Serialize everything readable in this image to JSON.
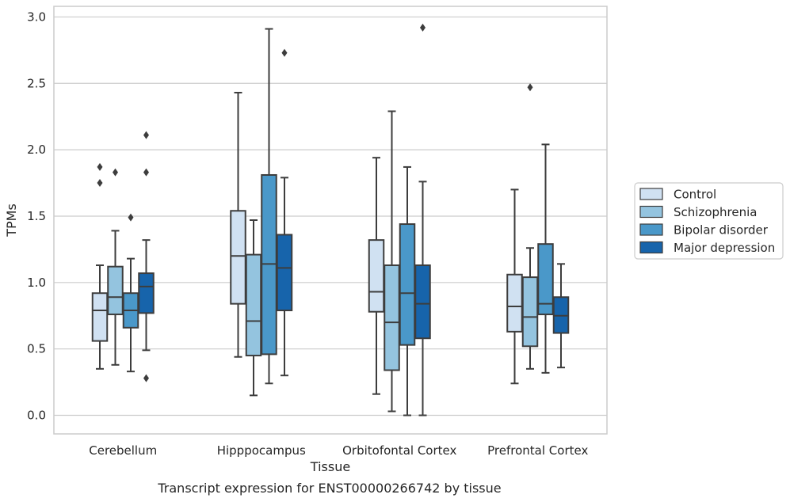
{
  "caption": "Transcript expression for ENST00000266742 by tissue",
  "chart_data": {
    "type": "box",
    "xlabel": "Tissue",
    "ylabel": "TPMs",
    "ylim": [
      -0.14,
      3.08
    ],
    "yticks": [
      0.0,
      0.5,
      1.0,
      1.5,
      2.0,
      2.5,
      3.0
    ],
    "ytick_labels": [
      "0.0",
      "0.5",
      "1.0",
      "1.5",
      "2.0",
      "2.5",
      "3.0"
    ],
    "grid": "horizontal",
    "legend_position": "right",
    "categories": [
      "Cerebellum",
      "Hipppocampus",
      "Orbitofontal Cortex",
      "Prefrontal Cortex"
    ],
    "series": [
      {
        "name": "Control",
        "color": "#d0e1f2",
        "boxes": [
          {
            "whislo": 0.35,
            "q1": 0.56,
            "med": 0.79,
            "q3": 0.92,
            "whishi": 1.13,
            "fliers": [
              1.75,
              1.87
            ]
          },
          {
            "whislo": 0.44,
            "q1": 0.84,
            "med": 1.2,
            "q3": 1.54,
            "whishi": 2.43,
            "fliers": []
          },
          {
            "whislo": 0.16,
            "q1": 0.78,
            "med": 0.93,
            "q3": 1.32,
            "whishi": 1.94,
            "fliers": []
          },
          {
            "whislo": 0.24,
            "q1": 0.63,
            "med": 0.82,
            "q3": 1.06,
            "whishi": 1.7,
            "fliers": []
          }
        ]
      },
      {
        "name": "Schizophrenia",
        "color": "#94c4df",
        "boxes": [
          {
            "whislo": 0.38,
            "q1": 0.76,
            "med": 0.89,
            "q3": 1.12,
            "whishi": 1.39,
            "fliers": [
              1.83
            ]
          },
          {
            "whislo": 0.15,
            "q1": 0.45,
            "med": 0.71,
            "q3": 1.21,
            "whishi": 1.47,
            "fliers": []
          },
          {
            "whislo": 0.03,
            "q1": 0.34,
            "med": 0.7,
            "q3": 1.13,
            "whishi": 2.29,
            "fliers": []
          },
          {
            "whislo": 0.35,
            "q1": 0.52,
            "med": 0.74,
            "q3": 1.04,
            "whishi": 1.26,
            "fliers": [
              2.47
            ]
          }
        ]
      },
      {
        "name": "Bipolar disorder",
        "color": "#4a98c9",
        "boxes": [
          {
            "whislo": 0.33,
            "q1": 0.66,
            "med": 0.79,
            "q3": 0.92,
            "whishi": 1.18,
            "fliers": [
              1.49
            ]
          },
          {
            "whislo": 0.24,
            "q1": 0.46,
            "med": 1.14,
            "q3": 1.81,
            "whishi": 2.91,
            "fliers": []
          },
          {
            "whislo": 0.0,
            "q1": 0.53,
            "med": 0.92,
            "q3": 1.44,
            "whishi": 1.87,
            "fliers": []
          },
          {
            "whislo": 0.32,
            "q1": 0.76,
            "med": 0.84,
            "q3": 1.29,
            "whishi": 2.04,
            "fliers": []
          }
        ]
      },
      {
        "name": "Major depression",
        "color": "#1764ab",
        "boxes": [
          {
            "whislo": 0.49,
            "q1": 0.77,
            "med": 0.97,
            "q3": 1.07,
            "whishi": 1.32,
            "fliers": [
              0.28,
              1.83,
              2.11
            ]
          },
          {
            "whislo": 0.3,
            "q1": 0.79,
            "med": 1.11,
            "q3": 1.36,
            "whishi": 1.79,
            "fliers": [
              2.73
            ]
          },
          {
            "whislo": 0.0,
            "q1": 0.58,
            "med": 0.84,
            "q3": 1.13,
            "whishi": 1.76,
            "fliers": [
              2.92
            ]
          },
          {
            "whislo": 0.36,
            "q1": 0.62,
            "med": 0.75,
            "q3": 0.89,
            "whishi": 1.14,
            "fliers": []
          }
        ]
      }
    ]
  }
}
